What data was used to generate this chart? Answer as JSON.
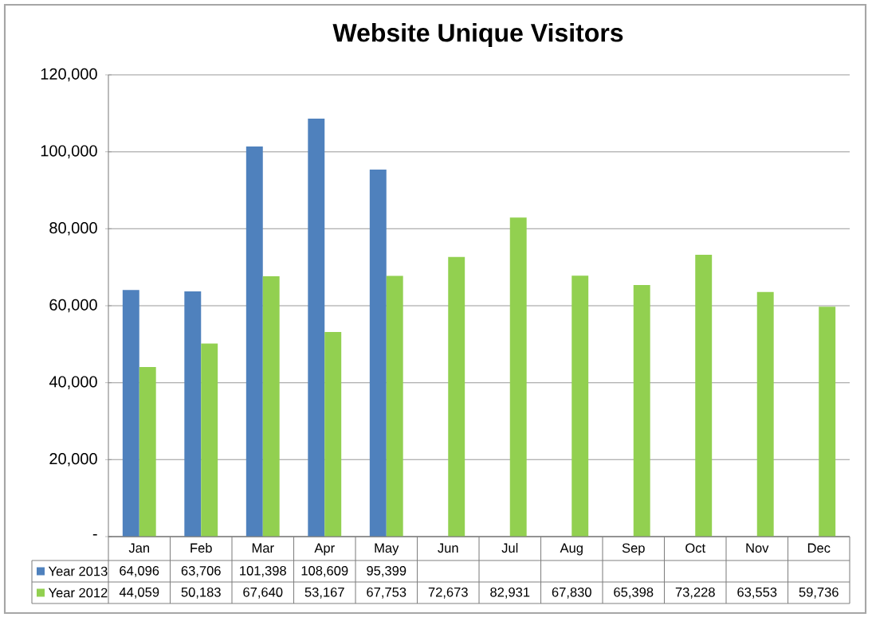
{
  "chart_data": {
    "type": "bar",
    "title": "Website Unique Visitors",
    "categories": [
      "Jan",
      "Feb",
      "Mar",
      "Apr",
      "May",
      "Jun",
      "Jul",
      "Aug",
      "Sep",
      "Oct",
      "Nov",
      "Dec"
    ],
    "series": [
      {
        "name": "Year 2013",
        "color": "#4f81bd",
        "values": [
          64096,
          63706,
          101398,
          108609,
          95399,
          null,
          null,
          null,
          null,
          null,
          null,
          null
        ],
        "value_labels": [
          "64,096",
          "63,706",
          "101,398",
          "108,609",
          "95,399",
          null,
          null,
          null,
          null,
          null,
          null,
          null
        ]
      },
      {
        "name": "Year 2012",
        "color": "#92d050",
        "values": [
          44059,
          50183,
          67640,
          53167,
          67753,
          72673,
          82931,
          67830,
          65398,
          73228,
          63553,
          59736
        ],
        "value_labels": [
          "44,059",
          "50,183",
          "67,640",
          "53,167",
          "67,753",
          "72,673",
          "82,931",
          "67,830",
          "65,398",
          "73,228",
          "63,553",
          "59,736"
        ]
      }
    ],
    "ylim": [
      0,
      120000
    ],
    "yticks": [
      {
        "value": 0,
        "label": "-"
      },
      {
        "value": 20000,
        "label": "20,000"
      },
      {
        "value": 40000,
        "label": "40,000"
      },
      {
        "value": 60000,
        "label": "60,000"
      },
      {
        "value": 80000,
        "label": "80,000"
      },
      {
        "value": 100000,
        "label": "100,000"
      },
      {
        "value": 120000,
        "label": "120,000"
      }
    ],
    "grid": "y",
    "legend": "bottom"
  }
}
